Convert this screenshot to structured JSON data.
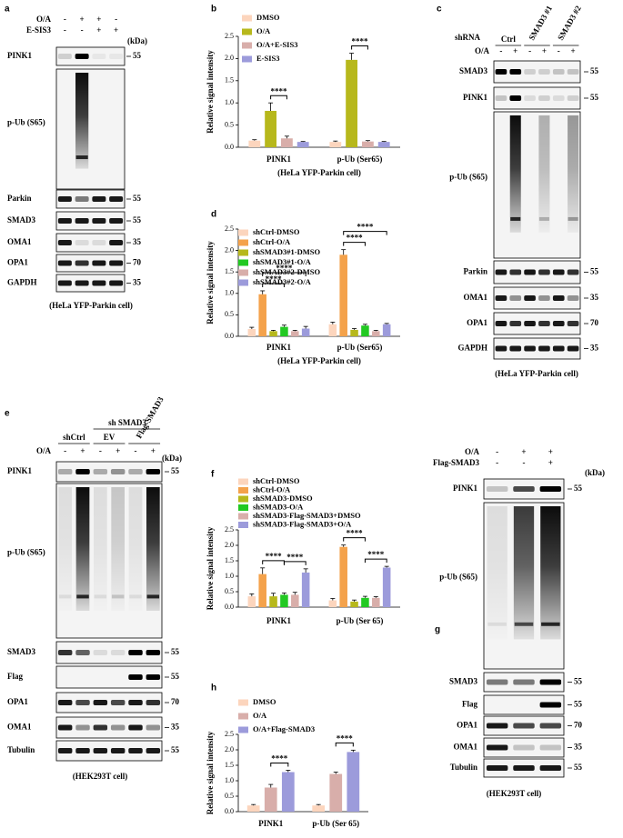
{
  "chart_data": [
    {
      "type": "bar",
      "label": "b",
      "y_label": "Relative signal intensity",
      "x_label": "(HeLa YFP-Parkin cell)",
      "categories": [
        "PINK1",
        "p-Ub (Ser65)"
      ],
      "series": [
        {
          "name": "DMSO",
          "color": "#fcd5bd",
          "values": [
            0.15,
            0.12
          ],
          "errors": [
            0.02,
            0.02
          ]
        },
        {
          "name": "O/A",
          "color": "#b7b81c",
          "values": [
            0.82,
            1.97
          ],
          "errors": [
            0.18,
            0.15
          ]
        },
        {
          "name": "O/A+E-SIS3",
          "color": "#d8aeaa",
          "values": [
            0.2,
            0.13
          ],
          "errors": [
            0.05,
            0.02
          ]
        },
        {
          "name": "E-SIS3",
          "color": "#9c9bdb",
          "values": [
            0.12,
            0.12
          ],
          "errors": [
            0.01,
            0.01
          ]
        }
      ],
      "ylim": [
        0,
        2.5
      ],
      "yticks": [
        {
          "value": 0,
          "label": "0.0"
        },
        0.5,
        {
          "value": 1,
          "label": "1.0"
        },
        1.5,
        {
          "value": 2,
          "label": "2.0"
        },
        2.5
      ],
      "annotations": [
        "****",
        "****"
      ],
      "legend": "upper left"
    },
    {
      "type": "bar",
      "label": "d",
      "y_label": "Relative signal intensity",
      "x_label": "(HeLa YFP-Parkin cell)",
      "categories": [
        "PINK1",
        "p-Ub (Ser65)"
      ],
      "series": [
        {
          "name": "shCtrl-DMSO",
          "color": "#fcd5bd",
          "values": [
            0.17,
            0.28
          ],
          "errors": [
            0.04,
            0.05
          ]
        },
        {
          "name": "shCtrl-O/A",
          "color": "#f4a24b",
          "values": [
            0.98,
            1.9
          ],
          "errors": [
            0.08,
            0.12
          ]
        },
        {
          "name": "shSMAD3#1-DMSO",
          "color": "#b7b81c",
          "values": [
            0.12,
            0.15
          ],
          "errors": [
            0.02,
            0.03
          ]
        },
        {
          "name": "shSMAD3#1-O/A",
          "color": "#22c922",
          "values": [
            0.22,
            0.25
          ],
          "errors": [
            0.04,
            0.03
          ]
        },
        {
          "name": "shSMAD3#2-DMSO",
          "color": "#d8aeaa",
          "values": [
            0.12,
            0.12
          ],
          "errors": [
            0.02,
            0.02
          ]
        },
        {
          "name": "shSMAD3#2-O/A",
          "color": "#9c9bdb",
          "values": [
            0.18,
            0.28
          ],
          "errors": [
            0.05,
            0.02
          ]
        }
      ],
      "ylim": [
        0,
        2.5
      ],
      "yticks": [
        {
          "value": 0,
          "label": "0.0"
        },
        0.5,
        {
          "value": 1,
          "label": "1.0"
        },
        1.5,
        {
          "value": 2,
          "label": "2.0"
        },
        2.5
      ],
      "annotations": [
        "****",
        "****",
        "****",
        "****"
      ],
      "legend": "upper left"
    },
    {
      "type": "bar",
      "label": "f",
      "y_label": "Relative signal intensity",
      "categories": [
        "PINK1",
        "p-Ub (Ser 65)"
      ],
      "series": [
        {
          "name": "shCtrl-DMSO",
          "color": "#fcd5bd",
          "values": [
            0.35,
            0.22
          ],
          "errors": [
            0.08,
            0.06
          ]
        },
        {
          "name": "shCtrl-O/A",
          "color": "#f4a24b",
          "values": [
            1.07,
            1.95
          ],
          "errors": [
            0.2,
            0.06
          ]
        },
        {
          "name": "shSMAD3-DMSO",
          "color": "#b7b81c",
          "values": [
            0.35,
            0.18
          ],
          "errors": [
            0.1,
            0.05
          ]
        },
        {
          "name": "shSMAD3-O/A",
          "color": "#22c922",
          "values": [
            0.4,
            0.3
          ],
          "errors": [
            0.06,
            0.05
          ]
        },
        {
          "name": "shSMAD3-Flag-SMAD3+DMSO",
          "color": "#d8aeaa",
          "values": [
            0.4,
            0.3
          ],
          "errors": [
            0.08,
            0.04
          ]
        },
        {
          "name": "shSMAD3-Flag-SMAD3+O/A",
          "color": "#9c9bdb",
          "values": [
            1.12,
            1.28
          ],
          "errors": [
            0.12,
            0.04
          ]
        }
      ],
      "ylim": [
        0,
        2.5
      ],
      "yticks": [
        {
          "value": 0,
          "label": "0.0"
        },
        0.5,
        {
          "value": 1,
          "label": "1.0"
        },
        1.5,
        {
          "value": 2,
          "label": "2.0"
        },
        2.5
      ],
      "annotations": [
        "****",
        "****",
        "****",
        "****"
      ],
      "legend": "upper left"
    },
    {
      "type": "bar",
      "label": "h",
      "y_label": "Relative signal intensity",
      "categories": [
        "PINK1",
        "p-Ub (Ser 65)"
      ],
      "series": [
        {
          "name": "DMSO",
          "color": "#fcd5bd",
          "values": [
            0.2,
            0.2
          ],
          "errors": [
            0.03,
            0.03
          ]
        },
        {
          "name": "O/A",
          "color": "#d8aeaa",
          "values": [
            0.78,
            1.22
          ],
          "errors": [
            0.1,
            0.06
          ]
        },
        {
          "name": "O/A+Flag-SMAD3",
          "color": "#9c9bdb",
          "values": [
            1.28,
            1.93
          ],
          "errors": [
            0.06,
            0.06
          ]
        }
      ],
      "ylim": [
        0,
        2.5
      ],
      "yticks": [
        {
          "value": 0,
          "label": "0.0"
        },
        0.5,
        {
          "value": 1,
          "label": "1.0"
        },
        1.5,
        {
          "value": 2,
          "label": "2.0"
        },
        2.5
      ],
      "annotations": [
        "****",
        "****"
      ],
      "legend": "upper left"
    }
  ],
  "blots": {
    "a": {
      "label": "a",
      "conditions": [
        {
          "name": "O/A",
          "signs": [
            "-",
            "+",
            "+",
            "-"
          ]
        },
        {
          "name": "E-SIS3",
          "signs": [
            "-",
            "-",
            "+",
            "+"
          ]
        }
      ],
      "unit": "(kDa)",
      "rows": [
        {
          "name": "PINK1",
          "kda": 55
        },
        {
          "name": "p-Ub (S65)"
        },
        {
          "name": "Parkin",
          "kda": 55
        },
        {
          "name": "SMAD3",
          "kda": 55
        },
        {
          "name": "OMA1",
          "kda": 35
        },
        {
          "name": "OPA1",
          "kda": 70
        },
        {
          "name": "GAPDH",
          "kda": 35
        }
      ],
      "caption": "(HeLa YFP-Parkin cell)"
    },
    "c": {
      "label": "c",
      "header": "shRNA",
      "groups": [
        "Ctrl",
        "SMAD3 #1",
        "SMAD3 #2"
      ],
      "conditions": [
        {
          "name": "O/A",
          "signs": [
            "-",
            "+",
            "-",
            "+",
            "-",
            "+"
          ]
        }
      ],
      "rows": [
        {
          "name": "SMAD3",
          "kda": 55
        },
        {
          "name": "PINK1",
          "kda": 55
        },
        {
          "name": "p-Ub (S65)"
        },
        {
          "name": "Parkin",
          "kda": 55
        },
        {
          "name": "OMA1",
          "kda": 35
        },
        {
          "name": "OPA1",
          "kda": 70
        },
        {
          "name": "GAPDH",
          "kda": 35
        }
      ],
      "caption": "(HeLa YFP-Parkin cell)"
    },
    "e": {
      "label": "e",
      "header": "sh SMAD3",
      "groups": [
        "shCtrl",
        "EV",
        "Flag-SMAD3"
      ],
      "conditions": [
        {
          "name": "O/A",
          "signs": [
            "-",
            "+",
            "-",
            "+",
            "-",
            "+"
          ]
        }
      ],
      "unit": "(kDa)",
      "rows": [
        {
          "name": "PINK1",
          "kda": 55
        },
        {
          "name": "p-Ub (S65)"
        },
        {
          "name": "SMAD3",
          "kda": 55
        },
        {
          "name": "Flag",
          "kda": 55
        },
        {
          "name": "OPA1",
          "kda": 70
        },
        {
          "name": "OMA1",
          "kda": 35
        },
        {
          "name": "Tubulin",
          "kda": 55
        }
      ],
      "caption": "(HEK293T cell)"
    },
    "g": {
      "label": "g",
      "conditions": [
        {
          "name": "O/A",
          "signs": [
            "-",
            "+",
            "+"
          ]
        },
        {
          "name": "Flag-SMAD3",
          "signs": [
            "-",
            "-",
            "+"
          ]
        }
      ],
      "unit": "(kDa)",
      "rows": [
        {
          "name": "PINK1",
          "kda": 55
        },
        {
          "name": "p-Ub (S65)"
        },
        {
          "name": "SMAD3",
          "kda": 55
        },
        {
          "name": "Flag",
          "kda": 55
        },
        {
          "name": "OPA1",
          "kda": 70
        },
        {
          "name": "OMA1",
          "kda": 35
        },
        {
          "name": "Tubulin",
          "kda": 55
        }
      ],
      "caption": "(HEK293T cell)"
    }
  }
}
